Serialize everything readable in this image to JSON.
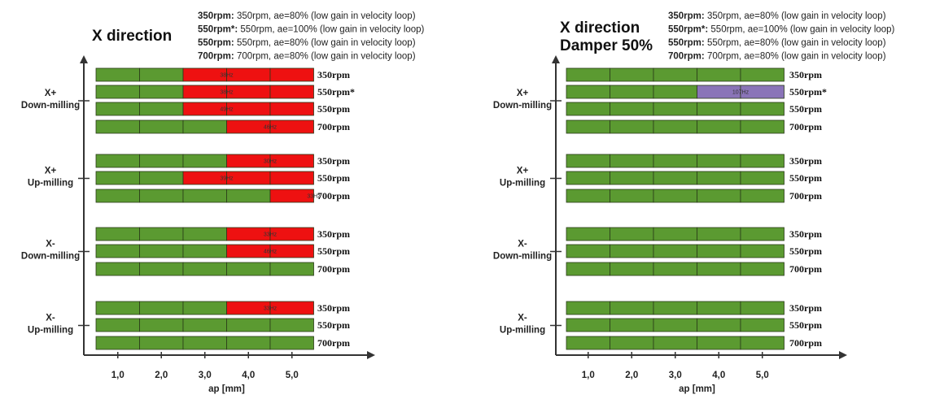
{
  "chart_data": [
    {
      "type": "bar",
      "title": [
        "X direction"
      ],
      "legend": [
        {
          "key": "350rpm:",
          "text": " 350rpm, ae=80% (low gain in velocity loop)"
        },
        {
          "key": "550rpm*:",
          "text": " 550rpm, ae=100% (low gain in velocity loop)"
        },
        {
          "key": "550rpm:",
          "text": " 550rpm, ae=80% (low gain in velocity loop)"
        },
        {
          "key": "700rpm:",
          "text": " 700rpm, ae=80% (low gain in velocity loop)"
        }
      ],
      "xlabel": "ap [mm]",
      "x_ticks": [
        "1,0",
        "2,0",
        "3,0",
        "4,0",
        "5,0"
      ],
      "xlim": [
        0.5,
        5.5
      ],
      "segment_width": 1.0,
      "colors": {
        "stable": "#5b9a31",
        "chatter": "#ee1111",
        "purple": "#8a74b8"
      },
      "groups": [
        {
          "label": [
            "X+",
            "Down-milling"
          ],
          "rows": [
            {
              "rpm": "350rpm",
              "chatter_from": 3,
              "hz": "38Hz"
            },
            {
              "rpm": "550rpm*",
              "chatter_from": 3,
              "hz": "38Hz"
            },
            {
              "rpm": "550rpm",
              "chatter_from": 3,
              "hz": "49Hz"
            },
            {
              "rpm": "700rpm",
              "chatter_from": 4,
              "hz": "46Hz"
            }
          ]
        },
        {
          "label": [
            "X+",
            "Up-milling"
          ],
          "rows": [
            {
              "rpm": "350rpm",
              "chatter_from": 4,
              "hz": "30Hz"
            },
            {
              "rpm": "550rpm",
              "chatter_from": 3,
              "hz": "39Hz"
            },
            {
              "rpm": "700rpm",
              "chatter_from": 5,
              "hz": "33Hz"
            }
          ]
        },
        {
          "label": [
            "X-",
            "Down-milling"
          ],
          "rows": [
            {
              "rpm": "350rpm",
              "chatter_from": 4,
              "hz": "33Hz"
            },
            {
              "rpm": "550rpm",
              "chatter_from": 4,
              "hz": "46Hz"
            },
            {
              "rpm": "700rpm",
              "chatter_from": null,
              "hz": ""
            }
          ]
        },
        {
          "label": [
            "X-",
            "Up-milling"
          ],
          "rows": [
            {
              "rpm": "350rpm",
              "chatter_from": 4,
              "hz": "33Hz"
            },
            {
              "rpm": "550rpm",
              "chatter_from": null,
              "hz": ""
            },
            {
              "rpm": "700rpm",
              "chatter_from": null,
              "hz": ""
            }
          ]
        }
      ]
    },
    {
      "type": "bar",
      "title": [
        "X direction",
        "Damper 50%"
      ],
      "legend": [
        {
          "key": "350rpm:",
          "text": " 350rpm, ae=80% (low gain in velocity loop)"
        },
        {
          "key": "550rpm*:",
          "text": " 550rpm, ae=100% (low gain in velocity loop)"
        },
        {
          "key": "550rpm:",
          "text": " 550rpm, ae=80% (low gain in velocity loop)"
        },
        {
          "key": "700rpm:",
          "text": " 700rpm, ae=80% (low gain in velocity loop)"
        }
      ],
      "xlabel": "ap [mm]",
      "x_ticks": [
        "1,0",
        "2,0",
        "3,0",
        "4,0",
        "5,0"
      ],
      "xlim": [
        0.5,
        5.5
      ],
      "segment_width": 1.0,
      "colors": {
        "stable": "#5b9a31",
        "chatter": "#ee1111",
        "purple": "#8a74b8"
      },
      "groups": [
        {
          "label": [
            "X+",
            "Down-milling"
          ],
          "rows": [
            {
              "rpm": "350rpm",
              "chatter_from": null,
              "hz": ""
            },
            {
              "rpm": "550rpm*",
              "chatter_from": 4,
              "hz": "107Hz",
              "color": "purple"
            },
            {
              "rpm": "550rpm",
              "chatter_from": null,
              "hz": ""
            },
            {
              "rpm": "700rpm",
              "chatter_from": null,
              "hz": ""
            }
          ]
        },
        {
          "label": [
            "X+",
            "Up-milling"
          ],
          "rows": [
            {
              "rpm": "350rpm",
              "chatter_from": null,
              "hz": ""
            },
            {
              "rpm": "550rpm",
              "chatter_from": null,
              "hz": ""
            },
            {
              "rpm": "700rpm",
              "chatter_from": null,
              "hz": ""
            }
          ]
        },
        {
          "label": [
            "X-",
            "Down-milling"
          ],
          "rows": [
            {
              "rpm": "350rpm",
              "chatter_from": null,
              "hz": ""
            },
            {
              "rpm": "550rpm",
              "chatter_from": null,
              "hz": ""
            },
            {
              "rpm": "700rpm",
              "chatter_from": null,
              "hz": ""
            }
          ]
        },
        {
          "label": [
            "X-",
            "Up-milling"
          ],
          "rows": [
            {
              "rpm": "350rpm",
              "chatter_from": null,
              "hz": ""
            },
            {
              "rpm": "550rpm",
              "chatter_from": null,
              "hz": ""
            },
            {
              "rpm": "700rpm",
              "chatter_from": null,
              "hz": ""
            }
          ]
        }
      ]
    }
  ]
}
